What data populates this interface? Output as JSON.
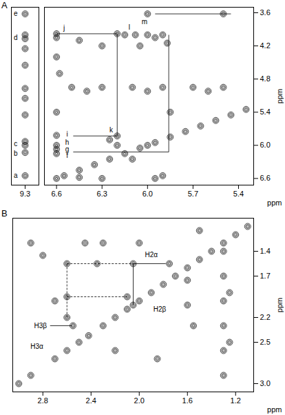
{
  "chart_data": [
    {
      "type": "scatter",
      "title": "A",
      "marker": "contour",
      "color": "#000000",
      "tick_labels": "x",
      "xlim": [
        9.38,
        9.22
      ],
      "xticks": [
        9.3
      ],
      "ylim": [
        3.5,
        6.72
      ],
      "x": [
        9.3,
        9.3,
        9.3,
        9.3,
        9.3,
        9.3,
        9.3,
        9.3,
        9.3,
        9.3,
        9.3,
        9.3
      ],
      "y": [
        3.62,
        4.0,
        4.07,
        4.25,
        4.55,
        4.97,
        5.15,
        5.45,
        5.93,
        6.0,
        6.13,
        6.55
      ],
      "annotations": [
        {
          "text": "a",
          "x": 9.355,
          "y": 6.55
        },
        {
          "text": "b",
          "x": 9.355,
          "y": 6.15
        },
        {
          "text": "c",
          "x": 9.355,
          "y": 5.98
        },
        {
          "text": "d",
          "x": 9.355,
          "y": 4.05
        },
        {
          "text": "e",
          "x": 9.355,
          "y": 3.62
        }
      ]
    },
    {
      "type": "scatter",
      "marker": "contour",
      "color": "#000000",
      "xlabel": "ppm",
      "ylabel": "ppm",
      "xlim": [
        6.68,
        5.3
      ],
      "xticks": [
        6.6,
        6.3,
        {
          "value": 6,
          "label": "6.0"
        },
        5.7,
        5.4
      ],
      "ylim": [
        3.5,
        6.72
      ],
      "yticks": [
        3.6,
        4.2,
        4.8,
        5.4,
        {
          "value": 6,
          "label": "6.0"
        },
        6.6
      ],
      "x": [
        6.6,
        6.55,
        6.45,
        6.35,
        6.25,
        6.15,
        6.05,
        6.0,
        5.95,
        5.85,
        5.75,
        5.65,
        5.55,
        5.45,
        5.35,
        6.6,
        6.6,
        6.6,
        6.6,
        6.6,
        6.6,
        6.6,
        6.58,
        6.6,
        6.2,
        6.15,
        6.08,
        6.0,
        5.95,
        5.9,
        6.2,
        6.25,
        6.2,
        6.1,
        6.0,
        5.5,
        6.45,
        6.3,
        6.05,
        5.87,
        5.85,
        6.45,
        6.3,
        5.95,
        5.9,
        6.5,
        6.3,
        6.1,
        5.9,
        5.7,
        5.5,
        6.4,
        6.0,
        5.6
      ],
      "y": [
        6.6,
        6.55,
        6.45,
        6.35,
        6.25,
        6.15,
        6.05,
        6.0,
        5.95,
        5.85,
        5.75,
        5.65,
        5.55,
        5.45,
        5.35,
        3.98,
        4.05,
        5.82,
        6.0,
        6.07,
        6.15,
        5.4,
        4.7,
        4.4,
        3.98,
        4.0,
        4.0,
        4.0,
        4.05,
        4.0,
        5.83,
        5.9,
        6.0,
        6.25,
        3.62,
        3.62,
        4.1,
        4.2,
        4.2,
        4.15,
        5.4,
        6.58,
        6.6,
        6.6,
        6.55,
        4.95,
        4.95,
        4.95,
        4.95,
        4.95,
        4.95,
        5.02,
        5.02,
        5.02
      ],
      "annotations": [
        {
          "text": "j",
          "x": 6.55,
          "y": 3.88
        },
        {
          "text": "l",
          "x": 6.12,
          "y": 3.86
        },
        {
          "text": "m",
          "x": 6.02,
          "y": 3.76
        },
        {
          "text": "i",
          "x": 6.53,
          "y": 5.8
        },
        {
          "text": "k",
          "x": 6.24,
          "y": 5.73
        },
        {
          "text": "h",
          "x": 6.53,
          "y": 5.95
        },
        {
          "text": "g",
          "x": 6.53,
          "y": 6.07
        },
        {
          "text": "f",
          "x": 6.53,
          "y": 6.19
        }
      ],
      "lines": [
        {
          "x1": 6.6,
          "y1": 3.98,
          "x2": 6.2,
          "y2": 3.98,
          "line_style": "solid"
        },
        {
          "x1": 6.2,
          "y1": 3.98,
          "x2": 6.2,
          "y2": 5.83,
          "line_style": "solid"
        },
        {
          "x1": 6.49,
          "y1": 5.83,
          "x2": 6.2,
          "y2": 5.83,
          "line_style": "solid"
        },
        {
          "x1": 6.49,
          "y1": 6.12,
          "x2": 5.86,
          "y2": 6.12,
          "line_style": "solid"
        },
        {
          "x1": 5.86,
          "y1": 4.0,
          "x2": 5.86,
          "y2": 6.12,
          "line_style": "solid"
        },
        {
          "x1": 5.95,
          "y1": 3.62,
          "x2": 5.45,
          "y2": 3.62,
          "line_style": "solid"
        }
      ]
    },
    {
      "type": "scatter",
      "title": "B",
      "marker": "contour",
      "color": "#000000",
      "xlabel": "ppm",
      "ylabel": "ppm",
      "xlim": [
        3.05,
        1.05
      ],
      "xticks": [
        2.8,
        2.4,
        {
          "value": 2,
          "label": "2.0"
        },
        1.6,
        1.2
      ],
      "ylim": [
        1.0,
        3.1
      ],
      "yticks": [
        1.4,
        1.7,
        2.2,
        2.5,
        {
          "value": 3,
          "label": "3.0"
        }
      ],
      "x": [
        3.0,
        2.9,
        2.7,
        2.6,
        2.5,
        2.42,
        2.3,
        2.2,
        2.1,
        2.0,
        1.9,
        1.8,
        1.7,
        1.6,
        1.5,
        1.4,
        1.3,
        1.2,
        1.1,
        2.05,
        1.75,
        2.05,
        2.6,
        2.6,
        2.6,
        2.1,
        2.35,
        2.45,
        2.3,
        2.0,
        1.5,
        1.6,
        1.6,
        1.55,
        1.3,
        1.3,
        1.3,
        1.3,
        1.3,
        1.3,
        1.25,
        1.25,
        2.55,
        2.7,
        2.8,
        2.9,
        2.2,
        1.85
      ],
      "y": [
        3.0,
        2.9,
        2.7,
        2.6,
        2.5,
        2.42,
        2.3,
        2.2,
        2.1,
        2.0,
        1.9,
        1.8,
        1.7,
        1.6,
        1.5,
        1.4,
        1.3,
        1.2,
        1.1,
        1.55,
        1.55,
        2.05,
        1.55,
        1.95,
        2.2,
        1.95,
        1.55,
        1.3,
        1.3,
        1.3,
        1.15,
        1.75,
        2.05,
        2.3,
        1.4,
        1.7,
        2.0,
        2.3,
        2.6,
        2.9,
        1.9,
        2.5,
        2.3,
        2.0,
        1.45,
        1.3,
        2.6,
        2.7
      ],
      "annotations": [
        {
          "text": "H2α",
          "x": 1.9,
          "y": 1.44
        },
        {
          "text": "H2β",
          "x": 1.83,
          "y": 2.1
        },
        {
          "text": "H3β",
          "x": 2.82,
          "y": 2.3
        },
        {
          "text": "H3α",
          "x": 2.85,
          "y": 2.55
        }
      ],
      "lines": [
        {
          "x1": 2.05,
          "y1": 1.55,
          "x2": 1.78,
          "y2": 1.55,
          "line_style": "solid"
        },
        {
          "x1": 2.05,
          "y1": 1.55,
          "x2": 2.05,
          "y2": 2.05,
          "line_style": "solid"
        },
        {
          "x1": 2.74,
          "y1": 2.3,
          "x2": 2.56,
          "y2": 2.3,
          "line_style": "solid"
        },
        {
          "x1": 2.6,
          "y1": 1.55,
          "x2": 2.05,
          "y2": 1.55,
          "line_style": "dashed"
        },
        {
          "x1": 2.6,
          "y1": 1.95,
          "x2": 2.1,
          "y2": 1.95,
          "line_style": "dashed"
        },
        {
          "x1": 2.6,
          "y1": 1.55,
          "x2": 2.6,
          "y2": 2.2,
          "line_style": "dashed"
        }
      ]
    }
  ]
}
